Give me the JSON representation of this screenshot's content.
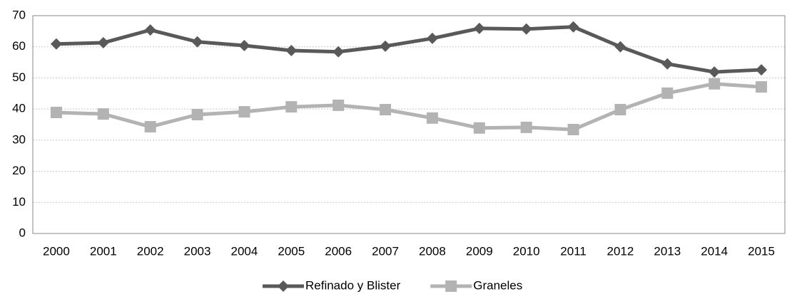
{
  "chart_data": {
    "type": "line",
    "categories": [
      "2000",
      "2001",
      "2002",
      "2003",
      "2004",
      "2005",
      "2006",
      "2007",
      "2008",
      "2009",
      "2010",
      "2011",
      "2012",
      "2013",
      "2014",
      "2015"
    ],
    "series": [
      {
        "name": "Refinado y Blister",
        "color": "#595959",
        "marker": "diamond",
        "values": [
          60.9,
          61.3,
          65.4,
          61.6,
          60.4,
          58.8,
          58.4,
          60.2,
          62.7,
          65.9,
          65.7,
          66.4,
          60.0,
          54.5,
          51.9,
          52.6
        ]
      },
      {
        "name": "Graneles",
        "color": "#b3b3b3",
        "marker": "square",
        "values": [
          38.9,
          38.4,
          34.3,
          38.2,
          39.1,
          40.7,
          41.2,
          39.8,
          37.1,
          33.9,
          34.1,
          33.4,
          39.8,
          45.1,
          48.1,
          47.1
        ]
      }
    ],
    "ylim": [
      0,
      70
    ],
    "yticks": [
      0,
      10,
      20,
      30,
      40,
      50,
      60,
      70
    ],
    "grid": true,
    "legend": "bottom"
  }
}
